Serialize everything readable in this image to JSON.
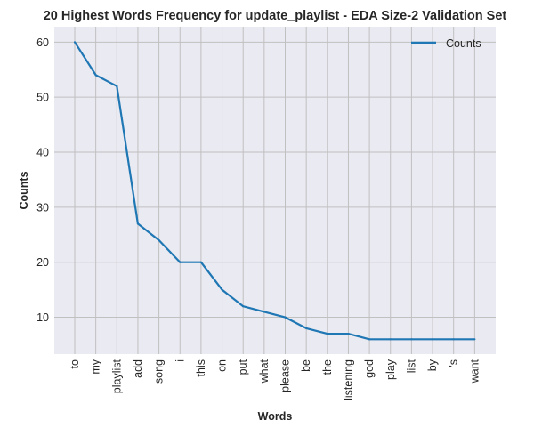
{
  "chart_data": {
    "type": "line",
    "title": "20 Highest Words Frequency for update_playlist - EDA Size-2 Validation Set",
    "xlabel": "Words",
    "ylabel": "Counts",
    "categories": [
      "to",
      "my",
      "playlist",
      "add",
      "song",
      "i",
      "this",
      "on",
      "put",
      "what",
      "please",
      "be",
      "the",
      "listening",
      "god",
      "play",
      "list",
      "by",
      "'s",
      "want"
    ],
    "series": [
      {
        "name": "Counts",
        "values": [
          60,
          54,
          52,
          27,
          24,
          20,
          20,
          15,
          12,
          11,
          10,
          8,
          7,
          7,
          6,
          6,
          6,
          6,
          6,
          6
        ]
      }
    ],
    "ylim": [
      3.3,
      62.8
    ],
    "yticks": [
      10,
      20,
      30,
      40,
      50,
      60
    ],
    "grid": true,
    "legend_position": "top-right",
    "colors": {
      "series": "#1f77b4",
      "plot_bg": "#eaeaf2",
      "grid": "#c0c0c0"
    }
  }
}
